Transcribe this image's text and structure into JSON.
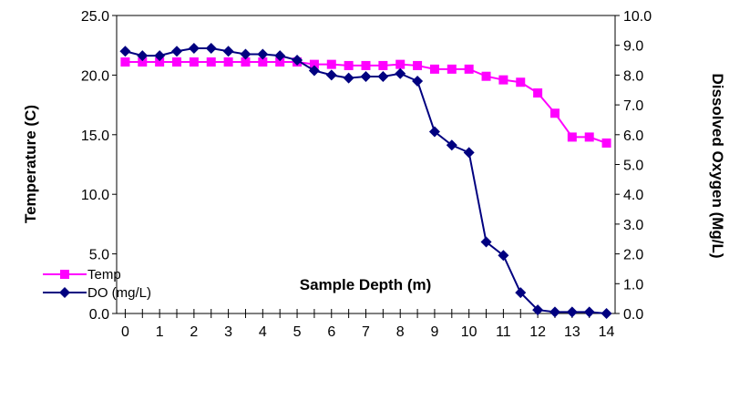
{
  "chart_data": {
    "type": "line",
    "xlabel": "Sample Depth (m)",
    "ylabel_left": "Temperature (C)",
    "ylabel_right": "Dissolved Oxygen (Mg/L)",
    "x_ticks": [
      "0",
      "1",
      "2",
      "3",
      "4",
      "5",
      "6",
      "7",
      "8",
      "9",
      "10",
      "11",
      "12",
      "13",
      "14"
    ],
    "y_left_ticks": [
      "0.0",
      "5.0",
      "10.0",
      "15.0",
      "20.0",
      "25.0"
    ],
    "y_right_ticks": [
      "0.0",
      "1.0",
      "2.0",
      "3.0",
      "4.0",
      "5.0",
      "6.0",
      "7.0",
      "8.0",
      "9.0",
      "10.0"
    ],
    "xlim": [
      -0.25,
      14.25
    ],
    "ylim_left": [
      0,
      25
    ],
    "ylim_right": [
      0,
      10
    ],
    "grid": false,
    "legend_position": "bottom-left",
    "series": [
      {
        "name": "Temp",
        "axis": "left",
        "color": "#ff00ff",
        "marker": "square",
        "x": [
          0,
          0.5,
          1,
          1.5,
          2,
          2.5,
          3,
          3.5,
          4,
          4.5,
          5,
          5.5,
          6,
          6.5,
          7,
          7.5,
          8,
          8.5,
          9,
          9.5,
          10,
          10.5,
          11,
          11.5,
          12,
          12.5,
          13,
          13.5,
          14
        ],
        "values": [
          21.1,
          21.1,
          21.1,
          21.1,
          21.1,
          21.1,
          21.1,
          21.1,
          21.1,
          21.1,
          21.1,
          20.9,
          20.9,
          20.8,
          20.8,
          20.8,
          20.9,
          20.8,
          20.5,
          20.5,
          20.5,
          19.9,
          19.6,
          19.4,
          18.5,
          16.8,
          14.8,
          14.8,
          14.3
        ]
      },
      {
        "name": "DO (mg/L)",
        "axis": "right",
        "color": "#000080",
        "marker": "diamond",
        "x": [
          0,
          0.5,
          1,
          1.5,
          2,
          2.5,
          3,
          3.5,
          4,
          4.5,
          5,
          5.5,
          6,
          6.5,
          7,
          7.5,
          8,
          8.5,
          9,
          9.5,
          10,
          10.5,
          11,
          11.5,
          12,
          12.5,
          13,
          13.5,
          14
        ],
        "values": [
          8.8,
          8.65,
          8.65,
          8.8,
          8.9,
          8.9,
          8.8,
          8.7,
          8.7,
          8.65,
          8.5,
          8.15,
          8.0,
          7.9,
          7.95,
          7.95,
          8.05,
          7.8,
          6.1,
          5.65,
          5.4,
          2.4,
          1.95,
          0.7,
          0.12,
          0.05,
          0.05,
          0.05,
          0.0
        ]
      }
    ]
  }
}
